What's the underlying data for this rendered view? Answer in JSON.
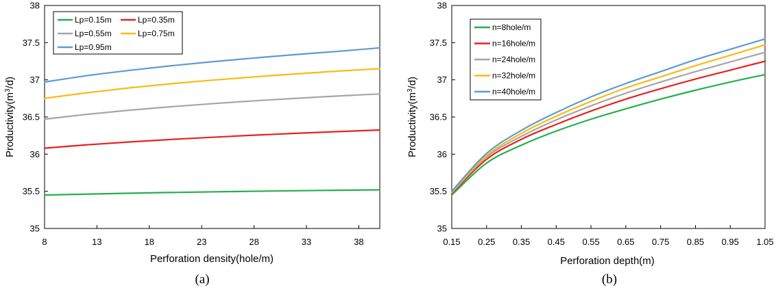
{
  "chart_data": [
    {
      "type": "line",
      "panel_label": "(a)",
      "xlabel": "Perforation density(hole/m)",
      "ylabel_main": "Productivity(m",
      "ylabel_sup": "3",
      "ylabel_tail": "/d)",
      "xlim": [
        8,
        40
      ],
      "ylim": [
        35,
        38
      ],
      "xticks": [
        "8",
        "13",
        "18",
        "23",
        "28",
        "33",
        "38"
      ],
      "yticks": [
        "35",
        "35.5",
        "36",
        "36.5",
        "37",
        "37.5",
        "38"
      ],
      "x": [
        8,
        12,
        16,
        20,
        24,
        28,
        32,
        36,
        40
      ],
      "series": [
        {
          "name": "Lp=0.15m",
          "color": "#22b04a",
          "values": [
            35.45,
            35.462,
            35.474,
            35.484,
            35.493,
            35.501,
            35.508,
            35.514,
            35.52
          ]
        },
        {
          "name": "Lp=0.35m",
          "color": "#e8201f",
          "values": [
            36.08,
            36.125,
            36.163,
            36.197,
            36.227,
            36.255,
            36.28,
            36.303,
            36.325
          ]
        },
        {
          "name": "Lp=0.55m",
          "color": "#a5a5a5",
          "values": [
            36.47,
            36.535,
            36.59,
            36.637,
            36.679,
            36.717,
            36.751,
            36.782,
            36.81
          ]
        },
        {
          "name": "Lp=0.75m",
          "color": "#fcb910",
          "values": [
            36.75,
            36.825,
            36.89,
            36.946,
            36.995,
            37.039,
            37.08,
            37.117,
            37.15
          ]
        },
        {
          "name": "Lp=0.95m",
          "color": "#5b9bd5",
          "values": [
            36.97,
            37.055,
            37.125,
            37.188,
            37.243,
            37.293,
            37.34,
            37.383,
            37.43
          ]
        }
      ],
      "legend_position": "top-left"
    },
    {
      "type": "line",
      "panel_label": "(b)",
      "xlabel": "Perforation depth(m)",
      "ylabel_main": "Productivity(m",
      "ylabel_sup": "3",
      "ylabel_tail": "/d)",
      "xlim": [
        0.15,
        1.05
      ],
      "ylim": [
        35,
        38
      ],
      "xticks": [
        "0.15",
        "0.25",
        "0.35",
        "0.45",
        "0.55",
        "0.65",
        "0.75",
        "0.85",
        "0.95",
        "1.05"
      ],
      "yticks": [
        "35",
        "35.5",
        "36",
        "36.5",
        "37",
        "37.5",
        "38"
      ],
      "x": [
        0.15,
        0.25,
        0.35,
        0.45,
        0.55,
        0.65,
        0.75,
        0.85,
        0.95,
        1.05
      ],
      "series": [
        {
          "name": "n=8hole/m",
          "color": "#22b04a",
          "values": [
            35.45,
            35.88,
            36.12,
            36.31,
            36.47,
            36.61,
            36.74,
            36.86,
            36.97,
            37.07
          ]
        },
        {
          "name": "n=16hole/m",
          "color": "#e8201f",
          "values": [
            35.47,
            35.93,
            36.2,
            36.4,
            36.58,
            36.74,
            36.88,
            37.01,
            37.13,
            37.25
          ]
        },
        {
          "name": "n=24hole/m",
          "color": "#a5a5a5",
          "values": [
            35.48,
            35.96,
            36.24,
            36.46,
            36.65,
            36.82,
            36.97,
            37.11,
            37.24,
            37.37
          ]
        },
        {
          "name": "n=32hole/m",
          "color": "#fcb910",
          "values": [
            35.49,
            35.98,
            36.28,
            36.51,
            36.71,
            36.89,
            37.04,
            37.19,
            37.33,
            37.47
          ]
        },
        {
          "name": "n=40hole/m",
          "color": "#5b9bd5",
          "values": [
            35.5,
            36.01,
            36.32,
            36.56,
            36.77,
            36.95,
            37.11,
            37.27,
            37.41,
            37.55
          ]
        }
      ],
      "legend_position": "top-left"
    }
  ]
}
